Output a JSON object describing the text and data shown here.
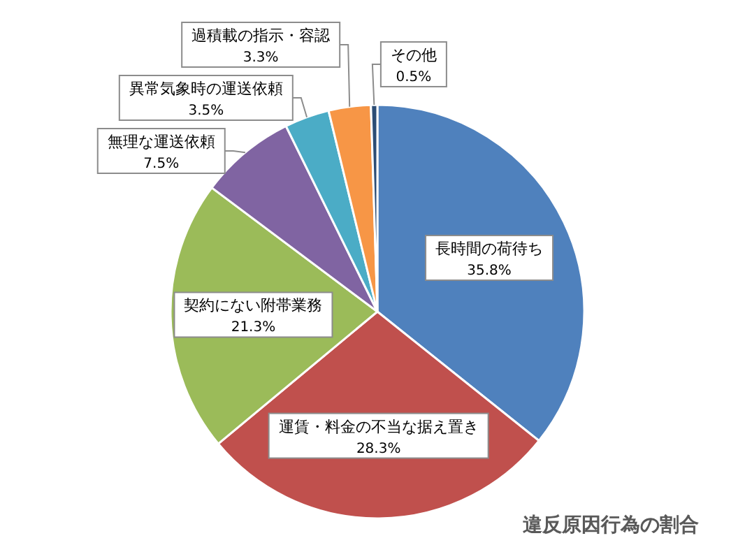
{
  "chart_data": {
    "type": "pie",
    "title": "違反原因行為の割合",
    "categories": [
      "長時間の荷待ち",
      "運賃・料金の不当な据え置き",
      "契約にない附帯業務",
      "無理な運送依頼",
      "異常気象時の運送依頼",
      "過積載の指示・容認",
      "その他"
    ],
    "values": [
      35.8,
      28.3,
      21.3,
      7.5,
      3.5,
      3.3,
      0.5
    ],
    "value_labels": [
      "35.8%",
      "28.3%",
      "21.3%",
      "7.5%",
      "3.5%",
      "3.3%",
      "0.5%"
    ],
    "colors": [
      "#4f81bd",
      "#c0504d",
      "#9bbb59",
      "#8064a2",
      "#4bacc6",
      "#f79646",
      "#2c4d75"
    ]
  }
}
